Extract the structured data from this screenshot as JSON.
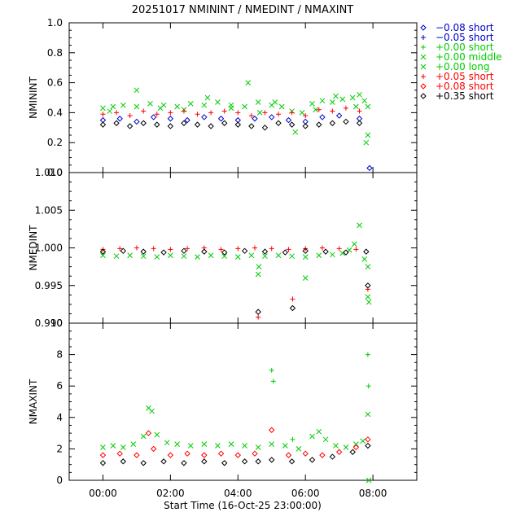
{
  "chart_data": {
    "type": "scatter",
    "title": "20251017 NMININT / NMEDINT / NMAXINT",
    "xlabel": "Start Time (16-Oct-25 23:00:00)",
    "x_ticks": [
      "00:00",
      "02:00",
      "04:00",
      "06:00",
      "08:00"
    ],
    "x_tick_values": [
      1,
      3,
      5,
      7,
      9
    ],
    "xlim": [
      0,
      10.3
    ],
    "legend_position": "top-right",
    "legend": [
      {
        "label": "−0.08 short",
        "color": "#0000cc",
        "marker": "diamond"
      },
      {
        "label": "−0.05 short",
        "color": "#0000cc",
        "marker": "plus"
      },
      {
        "label": "+0.00 short",
        "color": "#00cc00",
        "marker": "plus"
      },
      {
        "label": "+0.00 middle",
        "color": "#00cc00",
        "marker": "x"
      },
      {
        "label": "+0.00 long",
        "color": "#00cc00",
        "marker": "x"
      },
      {
        "label": "+0.05 short",
        "color": "#ff0000",
        "marker": "plus"
      },
      {
        "label": "+0.08 short",
        "color": "#ff0000",
        "marker": "diamond"
      },
      {
        "label": "+0.35 short",
        "color": "#000000",
        "marker": "diamond"
      }
    ],
    "panels": [
      {
        "ylabel": "NMININT",
        "ylim": [
          0.0,
          1.0
        ],
        "y_ticks": [
          "0.0",
          "0.2",
          "0.4",
          "0.6",
          "0.8",
          "1.0"
        ],
        "y_tick_values": [
          0.0,
          0.2,
          0.4,
          0.6,
          0.8,
          1.0
        ],
        "series": [
          {
            "name": "+0.00 long",
            "color": "#00cc00",
            "marker": "x",
            "x": [
              1.0,
              1.3,
              1.6,
              2.0,
              2.4,
              2.8,
              3.2,
              3.6,
              4.0,
              4.4,
              4.8,
              5.2,
              5.6,
              6.0,
              6.3,
              6.6,
              6.9,
              7.2,
              7.5,
              7.8,
              8.1,
              8.4,
              8.6,
              8.75,
              8.85
            ],
            "y": [
              0.43,
              0.44,
              0.45,
              0.44,
              0.46,
              0.45,
              0.44,
              0.46,
              0.45,
              0.47,
              0.45,
              0.44,
              0.47,
              0.45,
              0.44,
              0.41,
              0.4,
              0.46,
              0.48,
              0.47,
              0.49,
              0.5,
              0.52,
              0.48,
              0.44
            ]
          },
          {
            "name": "+0.00 middle",
            "color": "#00cc00",
            "marker": "x",
            "x": [
              1.2,
              2.0,
              2.7,
              3.4,
              4.1,
              4.8,
              5.3,
              5.65,
              6.1,
              6.7,
              7.3,
              7.9,
              8.5,
              8.8,
              8.85
            ],
            "y": [
              0.41,
              0.55,
              0.43,
              0.42,
              0.5,
              0.43,
              0.6,
              0.4,
              0.47,
              0.27,
              0.42,
              0.51,
              0.44,
              0.2,
              0.25
            ]
          },
          {
            "name": "+0.05 short",
            "color": "#ff0000",
            "marker": "plus",
            "x": [
              1.0,
              1.4,
              1.8,
              2.2,
              2.6,
              3.0,
              3.4,
              3.8,
              4.2,
              4.6,
              5.0,
              5.4,
              5.8,
              6.2,
              6.6,
              7.0,
              7.4,
              7.8,
              8.2,
              8.6
            ],
            "y": [
              0.39,
              0.4,
              0.38,
              0.41,
              0.39,
              0.4,
              0.41,
              0.39,
              0.4,
              0.41,
              0.4,
              0.38,
              0.4,
              0.39,
              0.4,
              0.38,
              0.42,
              0.41,
              0.43,
              0.41
            ]
          },
          {
            "name": "−0.08 short",
            "color": "#0000cc",
            "marker": "diamond",
            "x": [
              1.0,
              1.5,
              2.0,
              2.5,
              3.0,
              3.5,
              4.0,
              4.5,
              5.0,
              5.5,
              6.0,
              6.5,
              7.0,
              7.5,
              8.0,
              8.6,
              8.9
            ],
            "y": [
              0.35,
              0.36,
              0.34,
              0.37,
              0.36,
              0.35,
              0.37,
              0.36,
              0.35,
              0.36,
              0.37,
              0.35,
              0.34,
              0.37,
              0.38,
              0.36,
              0.03
            ]
          },
          {
            "name": "+0.35 short",
            "color": "#000000",
            "marker": "diamond",
            "x": [
              1.0,
              1.4,
              1.8,
              2.2,
              2.6,
              3.0,
              3.4,
              3.8,
              4.2,
              4.6,
              5.0,
              5.4,
              5.8,
              6.2,
              6.6,
              7.0,
              7.4,
              7.8,
              8.2,
              8.6
            ],
            "y": [
              0.32,
              0.33,
              0.31,
              0.33,
              0.32,
              0.31,
              0.33,
              0.32,
              0.31,
              0.33,
              0.32,
              0.31,
              0.3,
              0.33,
              0.32,
              0.31,
              0.32,
              0.33,
              0.34,
              0.33
            ]
          }
        ]
      },
      {
        "ylabel": "NMEDINT",
        "ylim": [
          0.99,
          1.01
        ],
        "y_ticks": [
          "0.990",
          "0.995",
          "1.000",
          "1.005",
          "1.010"
        ],
        "y_tick_values": [
          0.99,
          0.995,
          1.0,
          1.005,
          1.01
        ],
        "series": [
          {
            "name": "+0.00 long",
            "color": "#00cc00",
            "marker": "x",
            "x": [
              1.0,
              1.4,
              1.8,
              2.2,
              2.6,
              3.0,
              3.4,
              3.8,
              4.2,
              4.6,
              5.0,
              5.4,
              5.8,
              6.2,
              6.6,
              7.0,
              7.4,
              7.8,
              8.1,
              8.3,
              8.45,
              8.6,
              8.75,
              8.85,
              5.6,
              5.62,
              7.0,
              8.85,
              8.88
            ],
            "y": [
              0.999,
              0.9989,
              0.999,
              0.9989,
              0.9988,
              0.999,
              0.9989,
              0.9988,
              0.999,
              0.9989,
              0.9988,
              0.999,
              0.9989,
              0.999,
              0.9989,
              0.9988,
              0.999,
              0.9991,
              0.9993,
              0.9997,
              1.0005,
              1.003,
              0.9985,
              0.9975,
              0.9965,
              0.9975,
              0.996,
              0.9935,
              0.9928
            ]
          },
          {
            "name": "+0.05 short",
            "color": "#ff0000",
            "marker": "plus",
            "x": [
              1.0,
              1.5,
              2.0,
              2.5,
              3.0,
              3.5,
              4.0,
              4.5,
              5.0,
              5.5,
              6.0,
              6.5,
              7.0,
              7.5,
              8.0,
              8.5,
              5.6,
              6.62,
              8.85
            ],
            "y": [
              0.9998,
              0.9999,
              1.0,
              0.9999,
              0.9998,
              0.9999,
              1.0,
              0.9998,
              0.9999,
              1.0,
              0.9999,
              0.9998,
              0.9999,
              1.0,
              0.9999,
              0.9998,
              0.9908,
              0.9932,
              0.9945
            ]
          },
          {
            "name": "+0.35 short",
            "color": "#000000",
            "marker": "diamond",
            "x": [
              1.0,
              1.6,
              2.2,
              2.8,
              3.4,
              4.0,
              4.6,
              5.2,
              5.8,
              6.4,
              7.0,
              7.6,
              8.2,
              8.8,
              5.6,
              6.62,
              8.85
            ],
            "y": [
              0.9995,
              0.9996,
              0.9995,
              0.9994,
              0.9996,
              0.9995,
              0.9994,
              0.9996,
              0.9995,
              0.9994,
              0.9996,
              0.9995,
              0.9994,
              0.9995,
              0.9915,
              0.992,
              0.995
            ]
          }
        ]
      },
      {
        "ylabel": "NMAXINT",
        "ylim": [
          0,
          10
        ],
        "y_ticks": [
          "0",
          "2",
          "4",
          "6",
          "8",
          "10"
        ],
        "y_tick_values": [
          0,
          2,
          4,
          6,
          8,
          10
        ],
        "series": [
          {
            "name": "+0.00 long",
            "color": "#00cc00",
            "marker": "x",
            "x": [
              1.0,
              1.3,
              1.6,
              1.9,
              2.2,
              2.35,
              2.45,
              2.6,
              2.9,
              3.2,
              3.6,
              4.0,
              4.4,
              4.8,
              5.2,
              5.6,
              6.0,
              6.4,
              6.8,
              7.2,
              7.4,
              7.6,
              7.9,
              8.2,
              8.5,
              8.7,
              8.85,
              8.88
            ],
            "y": [
              2.1,
              2.2,
              2.1,
              2.3,
              2.8,
              4.6,
              4.4,
              2.9,
              2.4,
              2.3,
              2.2,
              2.3,
              2.2,
              2.3,
              2.2,
              2.1,
              2.3,
              2.2,
              2.0,
              2.8,
              3.1,
              2.6,
              2.2,
              2.1,
              2.3,
              2.5,
              4.2,
              0.0
            ]
          },
          {
            "name": "+0.00 short",
            "color": "#00cc00",
            "marker": "plus",
            "x": [
              6.0,
              6.05,
              6.62,
              8.85,
              8.87
            ],
            "y": [
              7.0,
              6.3,
              2.6,
              8.0,
              6.0
            ]
          },
          {
            "name": "+0.08 short",
            "color": "#ff0000",
            "marker": "diamond",
            "x": [
              1.0,
              1.5,
              2.0,
              2.35,
              2.5,
              3.0,
              3.5,
              4.0,
              4.5,
              5.0,
              5.5,
              6.0,
              6.5,
              7.0,
              7.5,
              8.0,
              8.5,
              8.85
            ],
            "y": [
              1.6,
              1.7,
              1.6,
              3.0,
              2.0,
              1.6,
              1.7,
              1.6,
              1.7,
              1.6,
              1.7,
              3.2,
              1.6,
              1.7,
              1.6,
              1.8,
              2.1,
              2.6
            ]
          },
          {
            "name": "+0.35 short",
            "color": "#000000",
            "marker": "diamond",
            "x": [
              1.0,
              1.6,
              2.2,
              2.8,
              3.4,
              4.0,
              4.6,
              5.2,
              5.6,
              6.0,
              6.6,
              7.2,
              7.8,
              8.4,
              8.85
            ],
            "y": [
              1.1,
              1.2,
              1.1,
              1.2,
              1.1,
              1.2,
              1.1,
              1.2,
              1.2,
              1.3,
              1.2,
              1.3,
              1.5,
              1.8,
              2.2
            ]
          }
        ]
      }
    ]
  }
}
